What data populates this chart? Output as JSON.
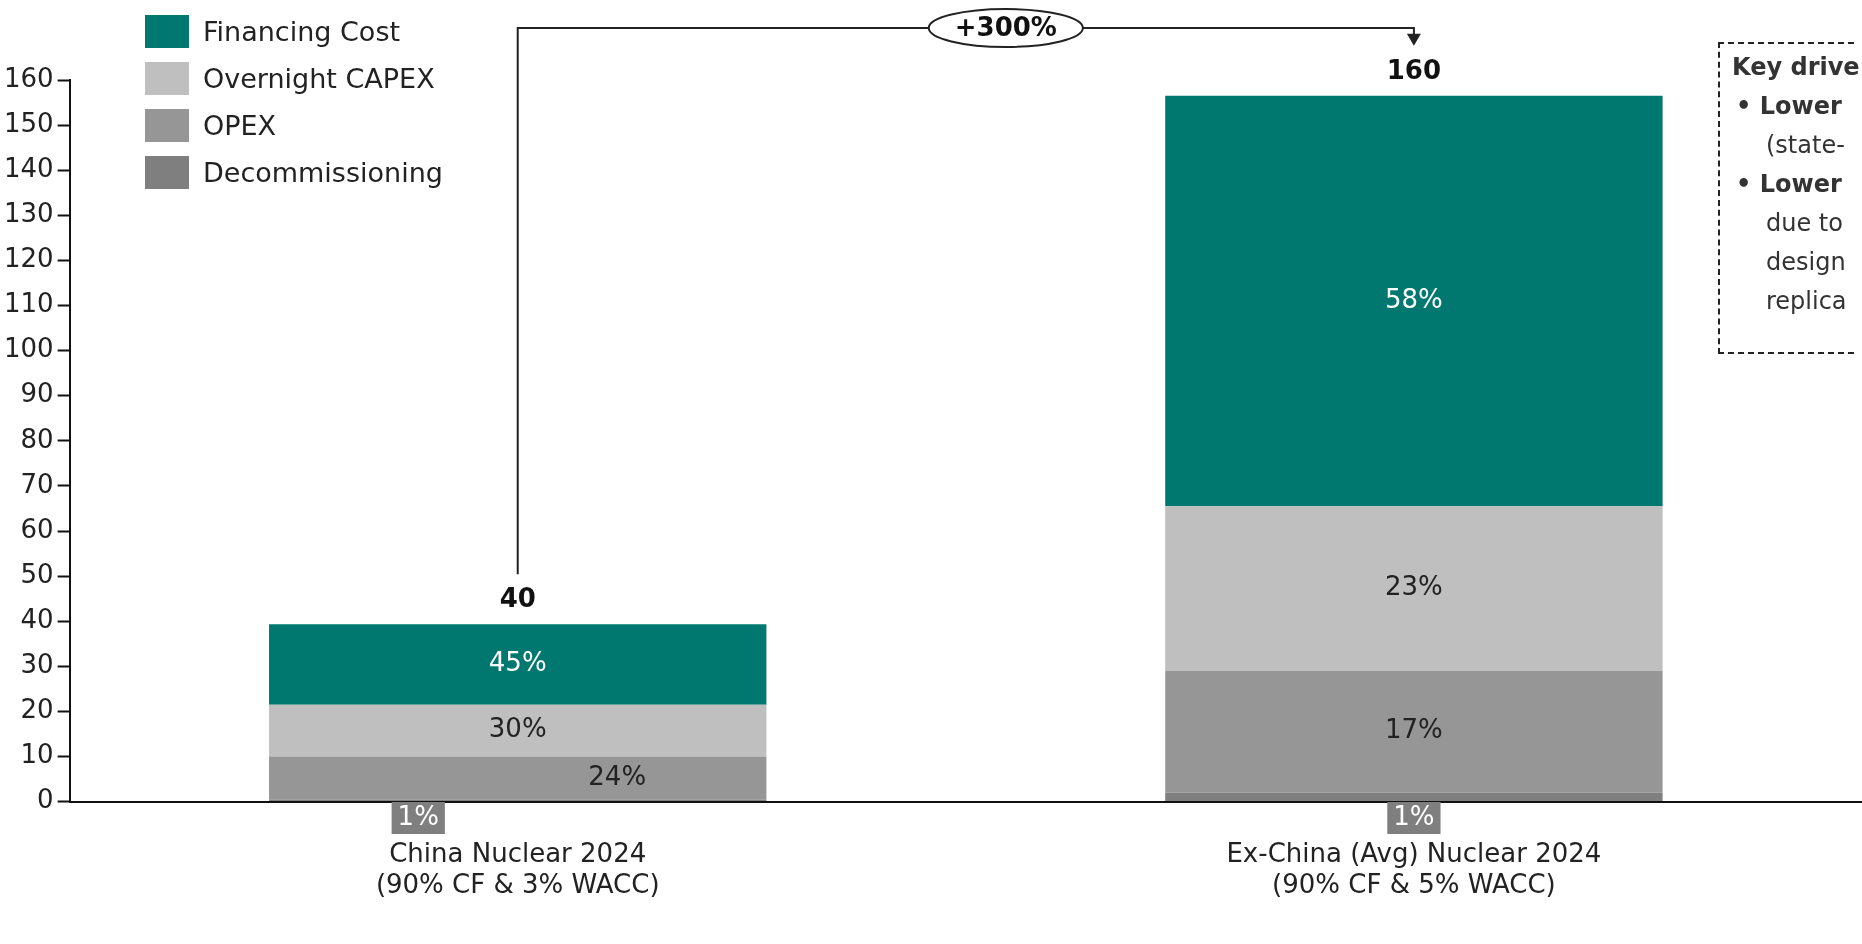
{
  "chart_data": {
    "type": "bar",
    "stacked": true,
    "categories": [
      "China Nuclear 2024\n(90% CF & 3% WACC)",
      "Ex-China (Avg) Nuclear 2024\n(90% CF & 5% WACC)"
    ],
    "series": [
      {
        "name": "Decommissioning",
        "color": "#7f7f7f",
        "values": [
          0.4,
          2
        ]
      },
      {
        "name": "OPEX",
        "color": "#969696",
        "values": [
          9.6,
          27
        ]
      },
      {
        "name": "Overnight CAPEX",
        "color": "#bfbfbf",
        "values": [
          11.5,
          36.5
        ]
      },
      {
        "name": "Financing Cost",
        "color": "#00786f",
        "values": [
          17.8,
          91
        ]
      }
    ],
    "ylim": [
      0,
      160
    ],
    "yticks": [
      0,
      10,
      20,
      30,
      40,
      50,
      60,
      70,
      80,
      90,
      100,
      110,
      120,
      130,
      140,
      150,
      160
    ],
    "grid": false,
    "legend": "top left",
    "annotations": [
      "+300%",
      "Key drive",
      "• Lower",
      "(state-",
      "• Lower",
      "due to",
      "design",
      "replica",
      "1%",
      "24%",
      "30%",
      "45%",
      "1%",
      "17%",
      "23%",
      "58%",
      "40",
      "160"
    ]
  }
}
